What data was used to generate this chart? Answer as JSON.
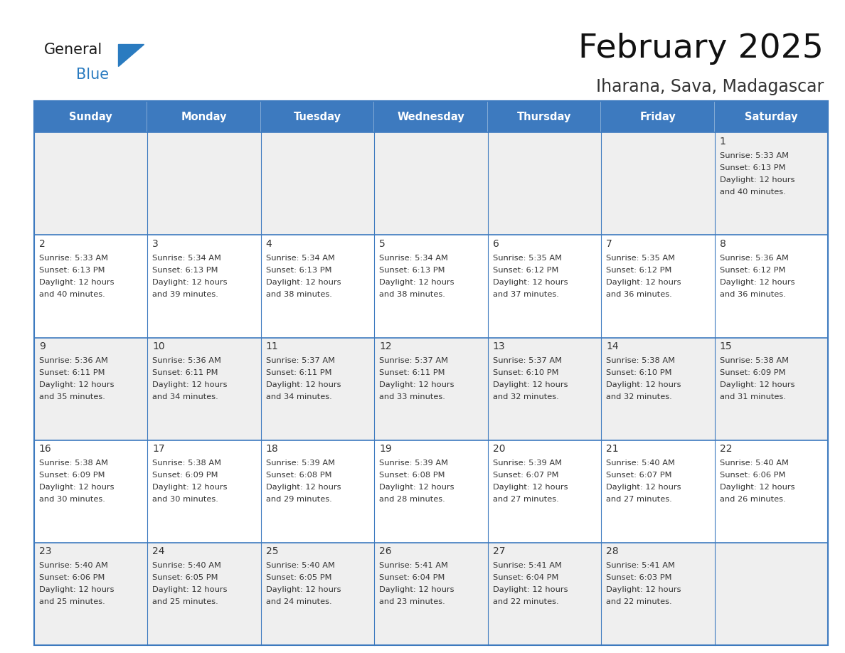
{
  "title": "February 2025",
  "subtitle": "Iharana, Sava, Madagascar",
  "header_bg": "#3D7ABF",
  "header_text_color": "#FFFFFF",
  "header_days": [
    "Sunday",
    "Monday",
    "Tuesday",
    "Wednesday",
    "Thursday",
    "Friday",
    "Saturday"
  ],
  "cell_bg_light": "#EFEFEF",
  "cell_bg_white": "#FFFFFF",
  "grid_color": "#3D7ABF",
  "text_color": "#333333",
  "logo_general_color": "#1A1A1A",
  "logo_blue_color": "#2A7BC0",
  "calendar_data": [
    {
      "day": 1,
      "col": 6,
      "row": 0,
      "sunrise": "5:33 AM",
      "sunset": "6:13 PM",
      "minutes": "40"
    },
    {
      "day": 2,
      "col": 0,
      "row": 1,
      "sunrise": "5:33 AM",
      "sunset": "6:13 PM",
      "minutes": "40"
    },
    {
      "day": 3,
      "col": 1,
      "row": 1,
      "sunrise": "5:34 AM",
      "sunset": "6:13 PM",
      "minutes": "39"
    },
    {
      "day": 4,
      "col": 2,
      "row": 1,
      "sunrise": "5:34 AM",
      "sunset": "6:13 PM",
      "minutes": "38"
    },
    {
      "day": 5,
      "col": 3,
      "row": 1,
      "sunrise": "5:34 AM",
      "sunset": "6:13 PM",
      "minutes": "38"
    },
    {
      "day": 6,
      "col": 4,
      "row": 1,
      "sunrise": "5:35 AM",
      "sunset": "6:12 PM",
      "minutes": "37"
    },
    {
      "day": 7,
      "col": 5,
      "row": 1,
      "sunrise": "5:35 AM",
      "sunset": "6:12 PM",
      "minutes": "36"
    },
    {
      "day": 8,
      "col": 6,
      "row": 1,
      "sunrise": "5:36 AM",
      "sunset": "6:12 PM",
      "minutes": "36"
    },
    {
      "day": 9,
      "col": 0,
      "row": 2,
      "sunrise": "5:36 AM",
      "sunset": "6:11 PM",
      "minutes": "35"
    },
    {
      "day": 10,
      "col": 1,
      "row": 2,
      "sunrise": "5:36 AM",
      "sunset": "6:11 PM",
      "minutes": "34"
    },
    {
      "day": 11,
      "col": 2,
      "row": 2,
      "sunrise": "5:37 AM",
      "sunset": "6:11 PM",
      "minutes": "34"
    },
    {
      "day": 12,
      "col": 3,
      "row": 2,
      "sunrise": "5:37 AM",
      "sunset": "6:11 PM",
      "minutes": "33"
    },
    {
      "day": 13,
      "col": 4,
      "row": 2,
      "sunrise": "5:37 AM",
      "sunset": "6:10 PM",
      "minutes": "32"
    },
    {
      "day": 14,
      "col": 5,
      "row": 2,
      "sunrise": "5:38 AM",
      "sunset": "6:10 PM",
      "minutes": "32"
    },
    {
      "day": 15,
      "col": 6,
      "row": 2,
      "sunrise": "5:38 AM",
      "sunset": "6:09 PM",
      "minutes": "31"
    },
    {
      "day": 16,
      "col": 0,
      "row": 3,
      "sunrise": "5:38 AM",
      "sunset": "6:09 PM",
      "minutes": "30"
    },
    {
      "day": 17,
      "col": 1,
      "row": 3,
      "sunrise": "5:38 AM",
      "sunset": "6:09 PM",
      "minutes": "30"
    },
    {
      "day": 18,
      "col": 2,
      "row": 3,
      "sunrise": "5:39 AM",
      "sunset": "6:08 PM",
      "minutes": "29"
    },
    {
      "day": 19,
      "col": 3,
      "row": 3,
      "sunrise": "5:39 AM",
      "sunset": "6:08 PM",
      "minutes": "28"
    },
    {
      "day": 20,
      "col": 4,
      "row": 3,
      "sunrise": "5:39 AM",
      "sunset": "6:07 PM",
      "minutes": "27"
    },
    {
      "day": 21,
      "col": 5,
      "row": 3,
      "sunrise": "5:40 AM",
      "sunset": "6:07 PM",
      "minutes": "27"
    },
    {
      "day": 22,
      "col": 6,
      "row": 3,
      "sunrise": "5:40 AM",
      "sunset": "6:06 PM",
      "minutes": "26"
    },
    {
      "day": 23,
      "col": 0,
      "row": 4,
      "sunrise": "5:40 AM",
      "sunset": "6:06 PM",
      "minutes": "25"
    },
    {
      "day": 24,
      "col": 1,
      "row": 4,
      "sunrise": "5:40 AM",
      "sunset": "6:05 PM",
      "minutes": "25"
    },
    {
      "day": 25,
      "col": 2,
      "row": 4,
      "sunrise": "5:40 AM",
      "sunset": "6:05 PM",
      "minutes": "24"
    },
    {
      "day": 26,
      "col": 3,
      "row": 4,
      "sunrise": "5:41 AM",
      "sunset": "6:04 PM",
      "minutes": "23"
    },
    {
      "day": 27,
      "col": 4,
      "row": 4,
      "sunrise": "5:41 AM",
      "sunset": "6:04 PM",
      "minutes": "22"
    },
    {
      "day": 28,
      "col": 5,
      "row": 4,
      "sunrise": "5:41 AM",
      "sunset": "6:03 PM",
      "minutes": "22"
    }
  ],
  "num_rows": 5,
  "num_cols": 7,
  "fig_width": 11.88,
  "fig_height": 9.18,
  "dpi": 100
}
